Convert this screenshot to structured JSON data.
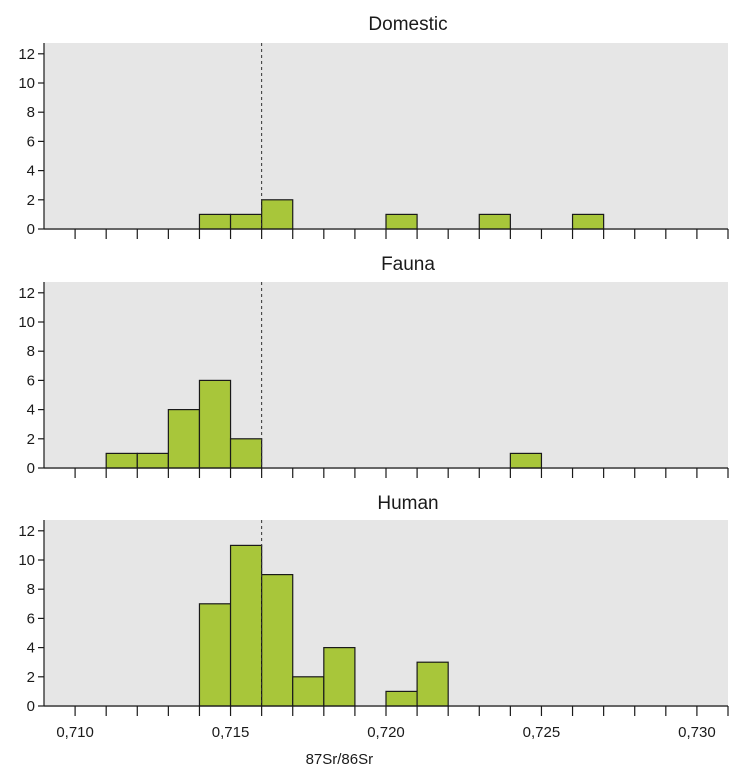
{
  "chart_data": {
    "type": "bar",
    "xlabel": "87Sr/86Sr",
    "bin_width": 0.001,
    "xlim": [
      0.709,
      0.731
    ],
    "ylim": [
      0,
      13
    ],
    "y_ticks": [
      "0",
      "2",
      "4",
      "6",
      "8",
      "10",
      "12"
    ],
    "x_tick_labels": [
      {
        "value": 0.71,
        "label": "0,710"
      },
      {
        "value": 0.715,
        "label": "0,715"
      },
      {
        "value": 0.72,
        "label": "0,720"
      },
      {
        "value": 0.725,
        "label": "0,725"
      },
      {
        "value": 0.73,
        "label": "0,730"
      }
    ],
    "reference_line": 0.716,
    "grid": false,
    "colors": {
      "bar_fill": "#a8c63a",
      "bar_stroke": "#1a1a1a",
      "panel_bg": "#e6e6e6",
      "axis": "#1a1a1a"
    },
    "panels": [
      {
        "title": "Domestic",
        "bins": [
          {
            "x": 0.714,
            "count": 1
          },
          {
            "x": 0.715,
            "count": 1
          },
          {
            "x": 0.716,
            "count": 2
          },
          {
            "x": 0.72,
            "count": 1
          },
          {
            "x": 0.723,
            "count": 1
          },
          {
            "x": 0.726,
            "count": 1
          }
        ]
      },
      {
        "title": "Fauna",
        "bins": [
          {
            "x": 0.711,
            "count": 1
          },
          {
            "x": 0.712,
            "count": 1
          },
          {
            "x": 0.713,
            "count": 4
          },
          {
            "x": 0.714,
            "count": 6
          },
          {
            "x": 0.715,
            "count": 2
          },
          {
            "x": 0.724,
            "count": 1
          }
        ]
      },
      {
        "title": "Human",
        "bins": [
          {
            "x": 0.714,
            "count": 7
          },
          {
            "x": 0.715,
            "count": 11
          },
          {
            "x": 0.716,
            "count": 9
          },
          {
            "x": 0.717,
            "count": 2
          },
          {
            "x": 0.718,
            "count": 4
          },
          {
            "x": 0.72,
            "count": 1
          },
          {
            "x": 0.721,
            "count": 3
          }
        ]
      }
    ]
  }
}
